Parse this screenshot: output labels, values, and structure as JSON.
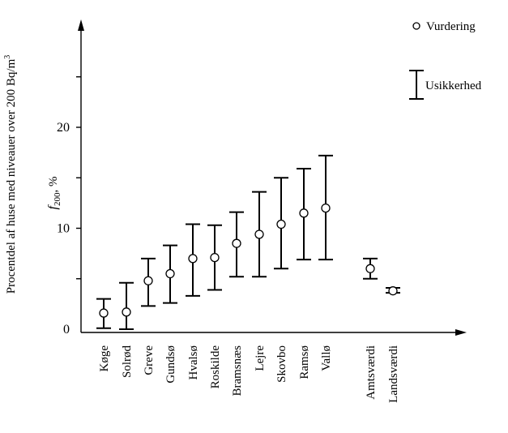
{
  "chart_data": {
    "type": "scatter",
    "title": "",
    "ylabel": "Procentdel af huse med niveauer over 200 Bq/m",
    "ylabel_superscript": "3",
    "ylabel_inner_prefix": "f",
    "ylabel_inner_subscript": "200",
    "ylabel_inner_suffix": ", %",
    "xlabel": "",
    "ylim": [
      0,
      30
    ],
    "yticks": [
      0,
      10,
      20
    ],
    "grid": false,
    "legend_position": "top-right",
    "legend": {
      "estimate_label": "Vurdering",
      "uncertainty_label": "Usikkerhed"
    },
    "categories": [
      "Køge",
      "Solrød",
      "Greve",
      "Gundsø",
      "Hvalsø",
      "Roskilde",
      "Bramsnæs",
      "Lejre",
      "Skovbo",
      "Ramsø",
      "Vallø",
      "Amtsværdi",
      "Landsværdi"
    ],
    "series": [
      {
        "name": "Vurdering",
        "values": [
          1.6,
          1.7,
          4.8,
          5.5,
          7.0,
          7.1,
          8.5,
          9.4,
          10.4,
          11.5,
          12.0,
          6.0,
          3.8
        ]
      }
    ],
    "error_low": [
      0.1,
      0.0,
      2.3,
      2.6,
      3.3,
      3.9,
      5.2,
      5.2,
      6.0,
      6.9,
      6.9,
      5.0,
      3.6
    ],
    "error_high": [
      3.0,
      4.6,
      7.0,
      8.3,
      10.4,
      10.3,
      11.6,
      13.6,
      15.0,
      15.9,
      17.2,
      7.0,
      4.1
    ]
  }
}
